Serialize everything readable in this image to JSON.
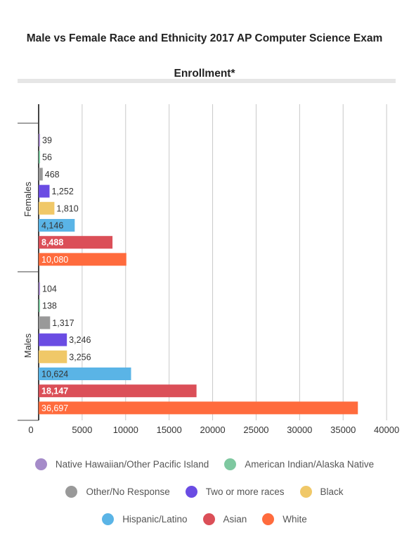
{
  "chart_data": {
    "type": "bar",
    "orientation": "horizontal",
    "title": "Male vs Female Race and Ethnicity 2017 AP Computer Science Exam Enrollment*",
    "xlabel": "",
    "ylabel": "",
    "xlim": [
      0,
      40000
    ],
    "x_ticks": [
      "0",
      "5000",
      "10000",
      "15000",
      "20000",
      "25000",
      "30000",
      "35000",
      "40000"
    ],
    "x_tick_values": [
      0,
      5000,
      10000,
      15000,
      20000,
      25000,
      30000,
      35000,
      40000
    ],
    "grid": true,
    "legend_position": "bottom",
    "categories": [
      "Females",
      "Males"
    ],
    "series": [
      {
        "name": "Native Hawaiian/Other Pacific Island",
        "color": "#a58bc9",
        "values": [
          39,
          104
        ],
        "labels": [
          "39",
          "104"
        ]
      },
      {
        "name": "American Indian/Alaska Native",
        "color": "#7ec8a0",
        "values": [
          56,
          138
        ],
        "labels": [
          "56",
          "138"
        ]
      },
      {
        "name": "Other/No Response",
        "color": "#999999",
        "values": [
          468,
          1317
        ],
        "labels": [
          "468",
          "1,317"
        ]
      },
      {
        "name": "Two or more races",
        "color": "#6a4ce3",
        "values": [
          1252,
          3246
        ],
        "labels": [
          "1,252",
          "3,246"
        ]
      },
      {
        "name": "Black",
        "color": "#f0c868",
        "values": [
          1810,
          3256
        ],
        "labels": [
          "1,810",
          "3,256"
        ]
      },
      {
        "name": "Hispanic/Latino",
        "color": "#5ab4e6",
        "values": [
          4146,
          10624
        ],
        "labels": [
          "4,146",
          "10,624"
        ]
      },
      {
        "name": "Asian",
        "color": "#db4f58",
        "values": [
          8488,
          18147
        ],
        "labels": [
          "8,488",
          "18,147"
        ]
      },
      {
        "name": "White",
        "color": "#ff6b3d",
        "values": [
          10080,
          36697
        ],
        "labels": [
          "10,080",
          "36,697"
        ]
      }
    ],
    "legend_rows": [
      [
        0,
        1
      ],
      [
        2,
        3,
        4
      ],
      [
        5,
        6,
        7
      ]
    ]
  }
}
